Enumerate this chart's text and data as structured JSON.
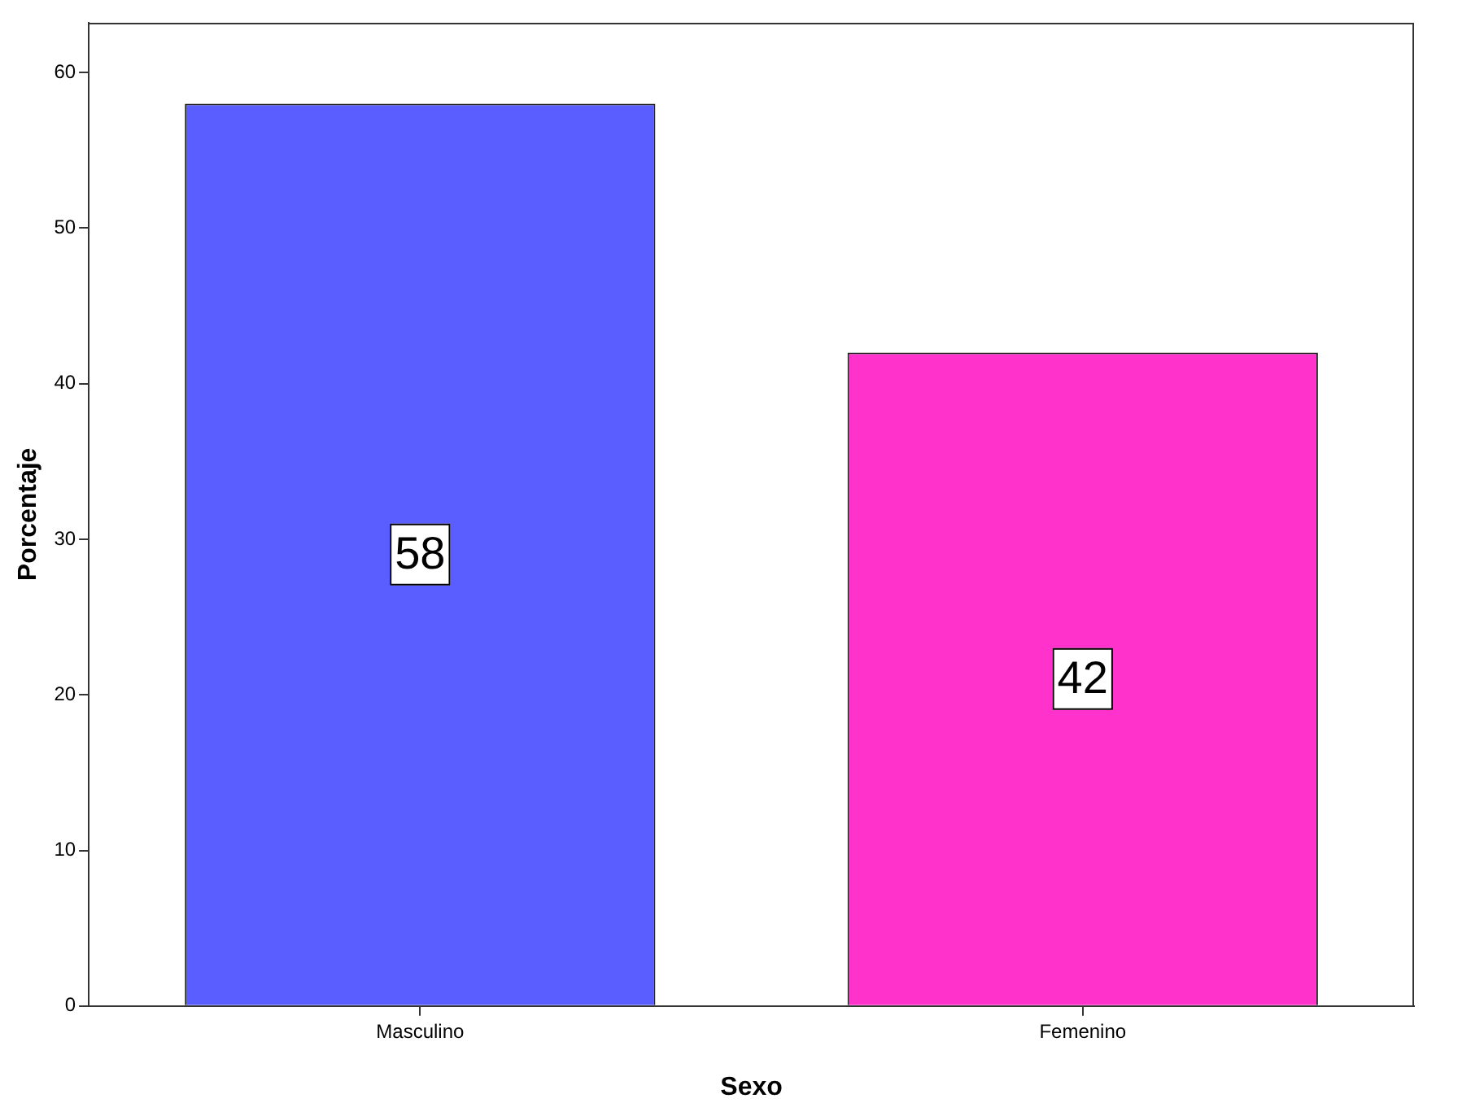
{
  "chart_data": {
    "type": "bar",
    "xlabel": "Sexo",
    "ylabel": "Porcentaje",
    "categories": [
      "Masculino",
      "Femenino"
    ],
    "values": [
      58,
      42
    ],
    "colors": [
      "#5a5eff",
      "#ff33cc"
    ],
    "ylim": [
      0,
      63.2
    ],
    "yticks": [
      0,
      10,
      20,
      30,
      40,
      50,
      60
    ],
    "data_labels": true,
    "grid": false,
    "legend": false
  }
}
